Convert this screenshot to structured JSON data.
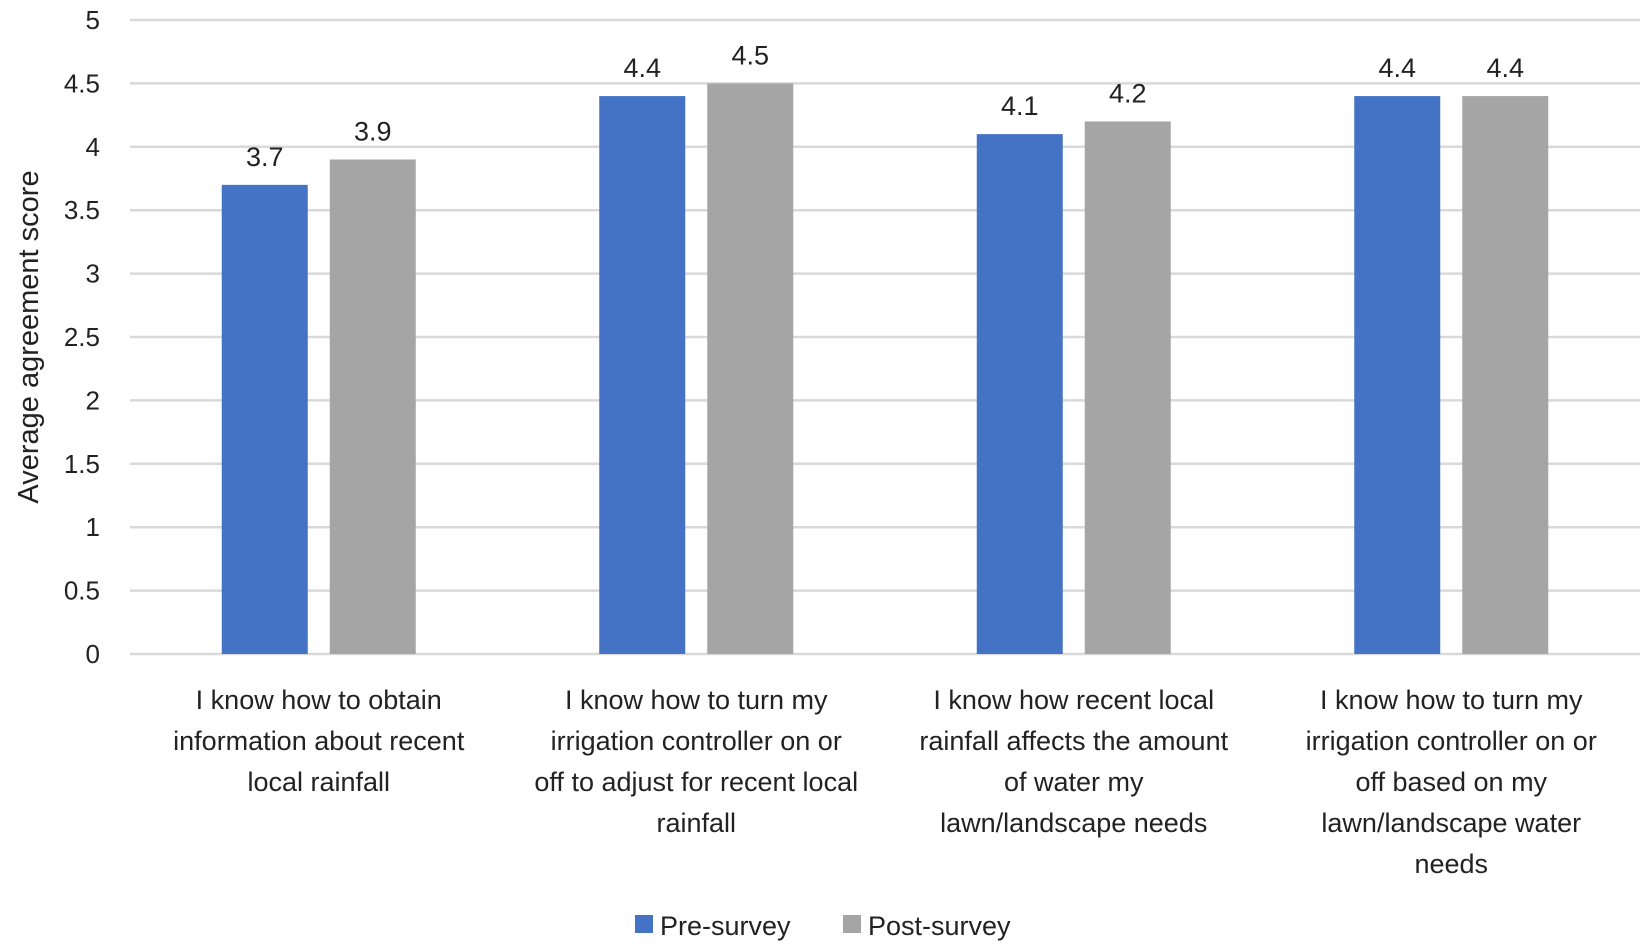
{
  "chart_data": {
    "type": "bar",
    "title": "",
    "xlabel": "",
    "ylabel": "Average agreement score",
    "ylim": [
      0,
      5
    ],
    "yticks": [
      0,
      0.5,
      1,
      1.5,
      2,
      2.5,
      3,
      3.5,
      4,
      4.5,
      5
    ],
    "ytick_labels": [
      "0",
      "0.5",
      "1",
      "1.5",
      "2",
      "2.5",
      "3",
      "3.5",
      "4",
      "4.5",
      "5"
    ],
    "grid": true,
    "legend_position": "bottom",
    "categories": [
      "I know how to obtain information about recent local rainfall",
      "I know how to turn my irrigation controller on or off to adjust for recent local rainfall",
      "I know how recent local rainfall affects the amount of water my lawn/landscape needs",
      "I know how to turn my irrigation controller on or off based on my lawn/landscape water needs"
    ],
    "category_lines": [
      [
        "I know how to obtain",
        "information about recent",
        "local rainfall"
      ],
      [
        "I know how to turn my",
        "irrigation controller on or",
        "off to adjust for recent local",
        "rainfall"
      ],
      [
        "I know how recent local",
        "rainfall affects the amount",
        "of water my",
        "lawn/landscape needs"
      ],
      [
        "I know how to turn my",
        "irrigation controller on or",
        "off based on my",
        "lawn/landscape water",
        "needs"
      ]
    ],
    "series": [
      {
        "name": "Pre-survey",
        "color": "#4472C4",
        "values": [
          3.7,
          4.4,
          4.1,
          4.4
        ],
        "labels": [
          "3.7",
          "4.4",
          "4.1",
          "4.4"
        ]
      },
      {
        "name": "Post-survey",
        "color": "#A5A5A5",
        "values": [
          3.9,
          4.5,
          4.2,
          4.4
        ],
        "labels": [
          "3.9",
          "4.5",
          "4.2",
          "4.4"
        ]
      }
    ],
    "gridline_color": "#D9D9D9"
  }
}
